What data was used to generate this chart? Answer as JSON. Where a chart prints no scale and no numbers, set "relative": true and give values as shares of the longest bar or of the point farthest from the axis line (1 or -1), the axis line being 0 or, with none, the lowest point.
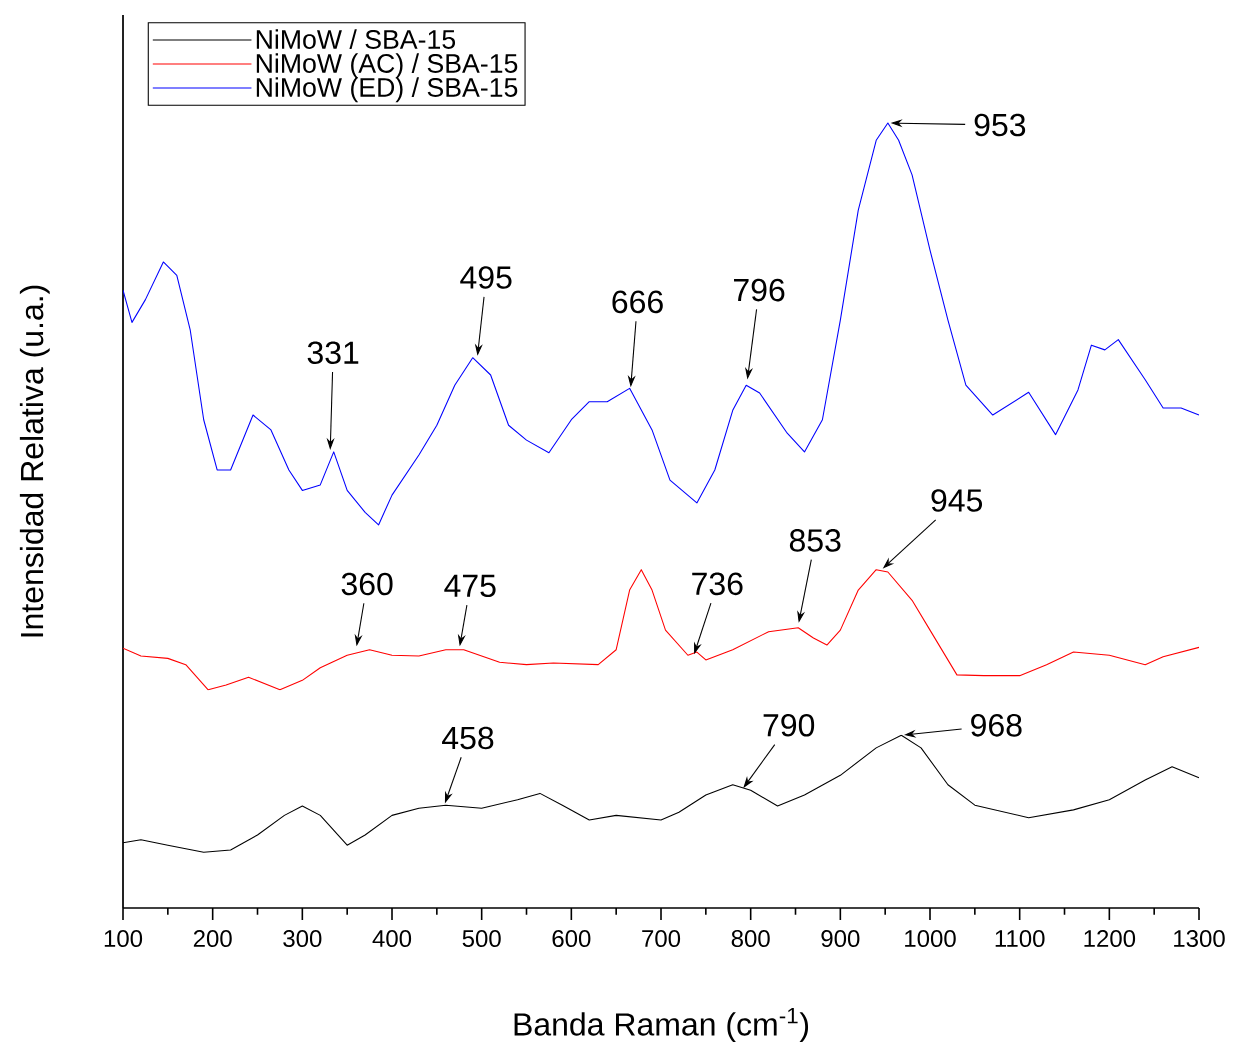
{
  "chart_data": {
    "type": "line",
    "relative": true,
    "xlabel": "Banda Raman (cm$^{-1}$)",
    "ylabel": "Intensidad Relativa (u.a.)",
    "xlim": [
      100,
      1300
    ],
    "xticks": [
      100,
      200,
      300,
      400,
      500,
      600,
      700,
      800,
      900,
      1000,
      1100,
      1200,
      1300
    ],
    "legend": "top left",
    "grid": false,
    "marker": "none",
    "line_style": "solid",
    "series": [
      {
        "name": "NiMoW / SBA-15",
        "color": "#000000",
        "x": [
          100,
          120,
          150,
          190,
          220,
          250,
          280,
          300,
          320,
          350,
          370,
          400,
          430,
          460,
          500,
          540,
          565,
          590,
          620,
          650,
          700,
          720,
          750,
          780,
          800,
          830,
          860,
          900,
          940,
          968,
          990,
          1020,
          1050,
          1110,
          1160,
          1200,
          1240,
          1270,
          1300
        ],
        "values": [
          0.083,
          0.087,
          0.08,
          0.071,
          0.074,
          0.093,
          0.118,
          0.13,
          0.118,
          0.08,
          0.093,
          0.118,
          0.127,
          0.131,
          0.127,
          0.138,
          0.146,
          0.131,
          0.112,
          0.118,
          0.112,
          0.122,
          0.144,
          0.157,
          0.15,
          0.13,
          0.144,
          0.169,
          0.204,
          0.22,
          0.204,
          0.157,
          0.131,
          0.115,
          0.125,
          0.138,
          0.163,
          0.18,
          0.166
        ]
      },
      {
        "name": "NiMoW (AC) / SBA-15",
        "color": "#ff0000",
        "x": [
          100,
          120,
          150,
          170,
          195,
          215,
          240,
          275,
          300,
          320,
          350,
          375,
          400,
          430,
          460,
          480,
          520,
          550,
          580,
          630,
          650,
          665,
          678,
          690,
          705,
          730,
          740,
          750,
          780,
          820,
          853,
          870,
          885,
          900,
          920,
          940,
          953,
          980,
          1000,
          1030,
          1060,
          1100,
          1130,
          1160,
          1200,
          1240,
          1260,
          1300
        ],
        "values": [
          0.331,
          0.321,
          0.318,
          0.31,
          0.278,
          0.284,
          0.294,
          0.278,
          0.29,
          0.306,
          0.322,
          0.329,
          0.322,
          0.321,
          0.329,
          0.329,
          0.313,
          0.31,
          0.312,
          0.31,
          0.329,
          0.405,
          0.431,
          0.405,
          0.354,
          0.322,
          0.326,
          0.316,
          0.329,
          0.352,
          0.357,
          0.344,
          0.335,
          0.354,
          0.405,
          0.431,
          0.428,
          0.392,
          0.354,
          0.297,
          0.296,
          0.296,
          0.31,
          0.326,
          0.322,
          0.31,
          0.32,
          0.332
        ]
      },
      {
        "name": "NiMoW (ED) / SBA-15",
        "color": "#0000ff",
        "x": [
          100,
          110,
          125,
          145,
          160,
          175,
          190,
          205,
          220,
          245,
          265,
          285,
          300,
          320,
          335,
          350,
          370,
          385,
          400,
          430,
          450,
          470,
          490,
          510,
          530,
          550,
          575,
          600,
          620,
          640,
          665,
          690,
          710,
          740,
          760,
          780,
          795,
          810,
          840,
          860,
          880,
          900,
          920,
          940,
          953,
          965,
          980,
          1000,
          1020,
          1040,
          1070,
          1110,
          1140,
          1165,
          1180,
          1195,
          1210,
          1240,
          1260,
          1280,
          1300
        ],
        "values": [
          0.787,
          0.746,
          0.775,
          0.823,
          0.806,
          0.736,
          0.622,
          0.558,
          0.558,
          0.628,
          0.609,
          0.558,
          0.532,
          0.539,
          0.581,
          0.532,
          0.504,
          0.488,
          0.526,
          0.577,
          0.615,
          0.666,
          0.701,
          0.679,
          0.615,
          0.596,
          0.58,
          0.622,
          0.645,
          0.645,
          0.662,
          0.609,
          0.545,
          0.516,
          0.558,
          0.634,
          0.666,
          0.656,
          0.606,
          0.581,
          0.622,
          0.749,
          0.889,
          0.978,
          1.0,
          0.978,
          0.934,
          0.838,
          0.749,
          0.666,
          0.628,
          0.657,
          0.603,
          0.66,
          0.717,
          0.711,
          0.724,
          0.673,
          0.637,
          0.637,
          0.628
        ]
      }
    ],
    "annotations": [
      {
        "text": "331",
        "x": 331,
        "y": 0.58
      },
      {
        "text": "495",
        "x": 495,
        "y": 0.7
      },
      {
        "text": "666",
        "x": 666,
        "y": 0.66
      },
      {
        "text": "796",
        "x": 796,
        "y": 0.67
      },
      {
        "text": "953",
        "x": 953,
        "y": 1.0
      },
      {
        "text": "360",
        "x": 360,
        "y": 0.33
      },
      {
        "text": "475",
        "x": 475,
        "y": 0.33
      },
      {
        "text": "736",
        "x": 736,
        "y": 0.32
      },
      {
        "text": "853",
        "x": 853,
        "y": 0.36
      },
      {
        "text": "945",
        "x": 945,
        "y": 0.43
      },
      {
        "text": "458",
        "x": 458,
        "y": 0.13
      },
      {
        "text": "790",
        "x": 790,
        "y": 0.15
      },
      {
        "text": "968",
        "x": 968,
        "y": 0.22
      }
    ]
  }
}
